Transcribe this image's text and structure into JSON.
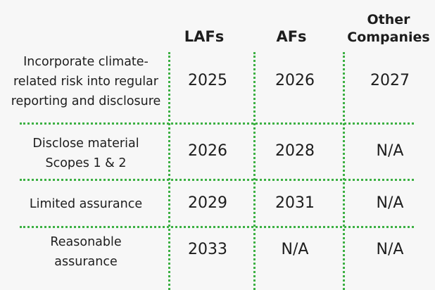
{
  "headers": {
    "lafs": "LAFs",
    "afs": "AFs",
    "other_line1": "Other",
    "other_line2": "Companies"
  },
  "rows": [
    {
      "label_lines": [
        "Incorporate climate-",
        "related risk into regular",
        "reporting and disclosure"
      ],
      "lafs": "2025",
      "afs": "2026",
      "other": "2027"
    },
    {
      "label_lines": [
        "Disclose material",
        "Scopes 1 & 2"
      ],
      "lafs": "2026",
      "afs": "2028",
      "other": "N/A"
    },
    {
      "label_lines": [
        "Limited assurance"
      ],
      "lafs": "2029",
      "afs": "2031",
      "other": "N/A"
    },
    {
      "label_lines": [
        "Reasonable",
        "assurance"
      ],
      "lafs": "2033",
      "afs": "N/A",
      "other": "N/A"
    }
  ],
  "colors": {
    "divider": "#3cb043",
    "text": "#1d1d1d",
    "background": "#f7f7f7"
  }
}
